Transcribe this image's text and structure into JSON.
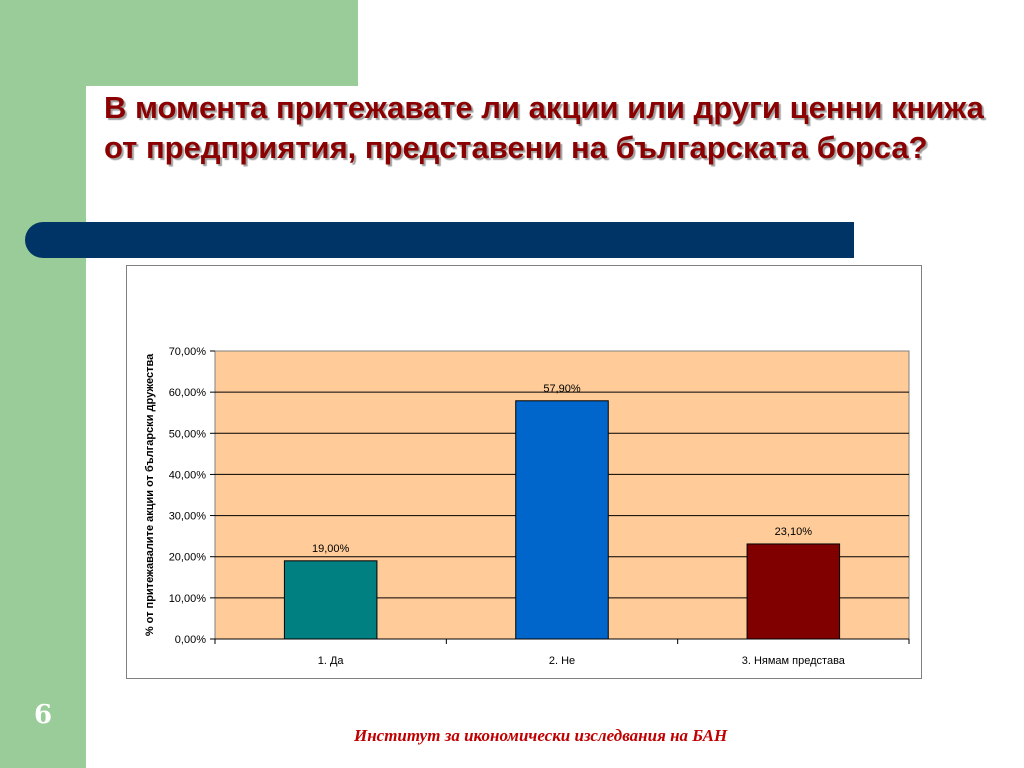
{
  "slide": {
    "title": "В момента притежавате ли акции или други ценни книжа от предприятия, представени на българската борса?",
    "number": "6",
    "footer": "Институт за икономически изследвания на БАН"
  },
  "colors": {
    "side_bar": "#99cc99",
    "title": "#8b0000",
    "pill": "#003366",
    "plot_bg": "#ffcc99",
    "footer": "#c00000"
  },
  "chart_data": {
    "type": "bar",
    "title": "",
    "xlabel": "",
    "ylabel": "% от притежавалите акции от български дружества",
    "categories": [
      "1. Да",
      "2. Не",
      "3. Нямам представа"
    ],
    "values": [
      19.0,
      57.9,
      23.1
    ],
    "value_labels": [
      "19,00%",
      "57,90%",
      "23,10%"
    ],
    "bar_colors": [
      "#008080",
      "#0066cc",
      "#800000"
    ],
    "ylim": [
      0,
      70
    ],
    "yticks": [
      0,
      10,
      20,
      30,
      40,
      50,
      60,
      70
    ],
    "ytick_labels": [
      "0,00%",
      "10,00%",
      "20,00%",
      "30,00%",
      "40,00%",
      "50,00%",
      "60,00%",
      "70,00%"
    ],
    "grid": true,
    "legend": "none"
  }
}
